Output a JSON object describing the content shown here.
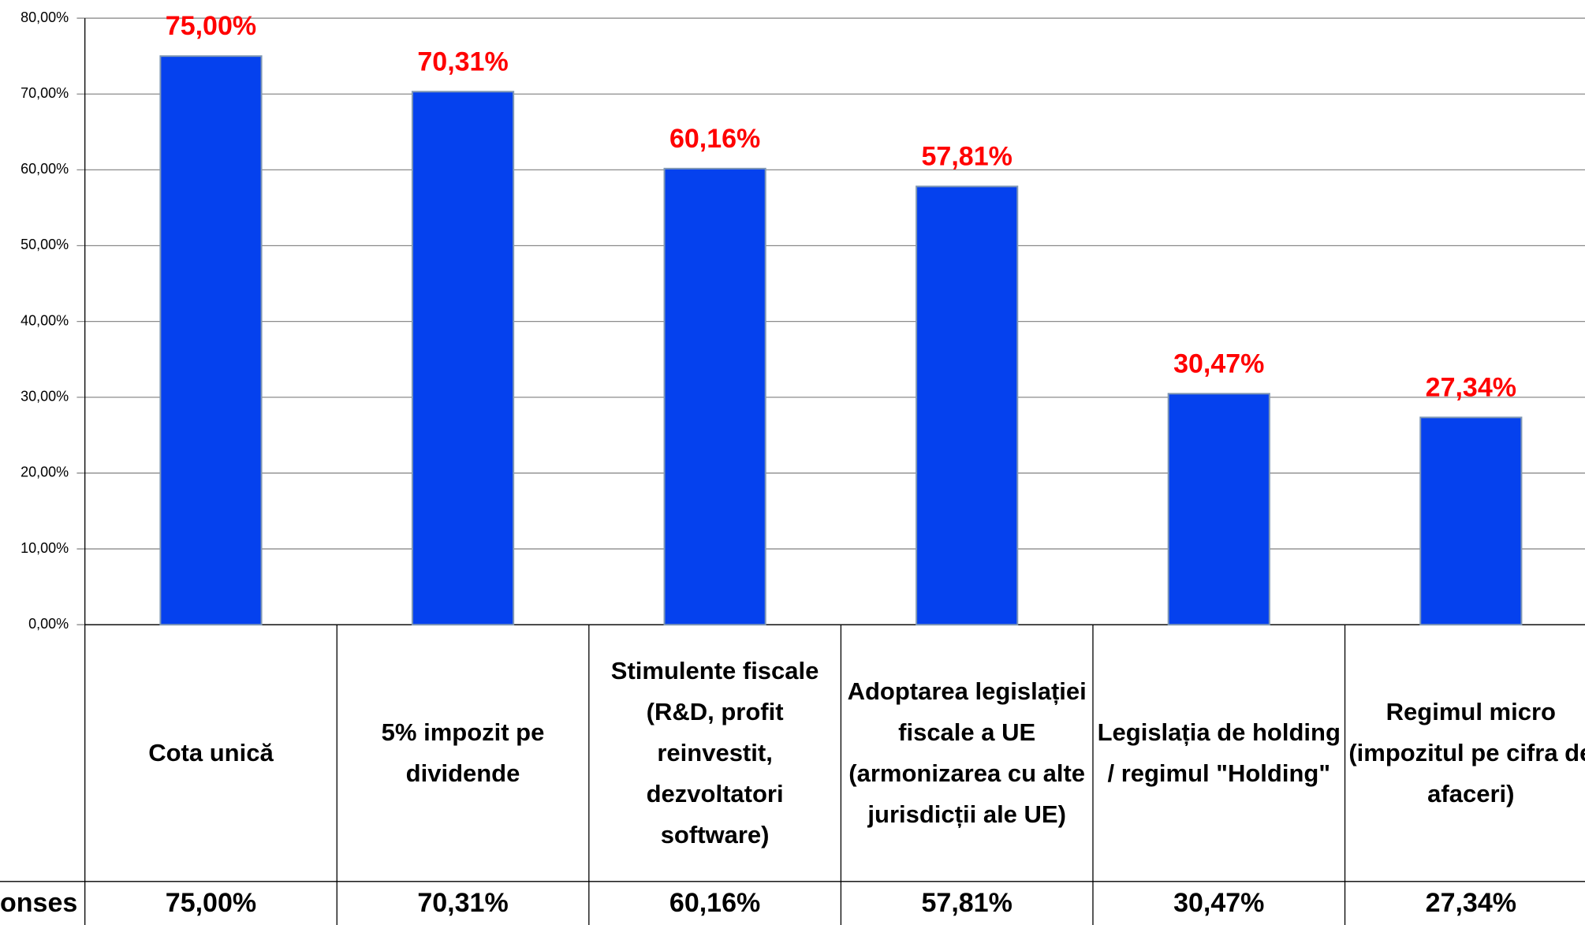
{
  "chart_data": {
    "type": "bar",
    "categories": [
      "Cota unică",
      "5% impozit pe dividende",
      "Stimulente fiscale (R&D, profit reinvestit, dezvoltatori software)",
      "Adoptarea legislației fiscale a UE (armonizarea cu alte jurisdicții ale UE)",
      "Legislația de holding / regimul \"Holding\"",
      "Regimul micro (impozitul pe cifra de afaceri)"
    ],
    "series": [
      {
        "name": "onses",
        "color": "#0541ee",
        "values": [
          75.0,
          70.31,
          60.16,
          57.81,
          30.47,
          27.34
        ],
        "value_labels": [
          "75,00%",
          "70,31%",
          "60,16%",
          "57,81%",
          "30,47%",
          "27,34%"
        ]
      }
    ],
    "value_label_color": "#ff0000",
    "ylim": [
      0,
      80
    ],
    "yticks": [
      {
        "value": 0,
        "label": "0,00%"
      },
      {
        "value": 10,
        "label": "10,00%"
      },
      {
        "value": 20,
        "label": "20,00%"
      },
      {
        "value": 30,
        "label": "30,00%"
      },
      {
        "value": 40,
        "label": "40,00%"
      },
      {
        "value": 50,
        "label": "50,00%"
      },
      {
        "value": 60,
        "label": "60,00%"
      },
      {
        "value": 70,
        "label": "70,00%"
      },
      {
        "value": 80,
        "label": "80,00%"
      }
    ],
    "grid": true
  }
}
